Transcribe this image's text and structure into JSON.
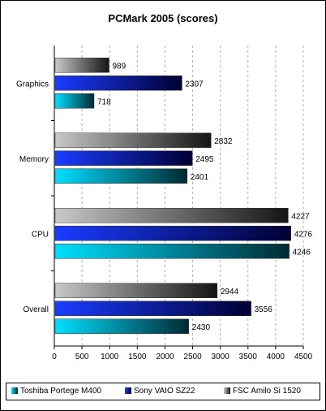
{
  "chart_data": {
    "type": "bar",
    "orientation": "horizontal",
    "title": "PCMark 2005 (scores)",
    "categories": [
      "Graphics",
      "Memory",
      "CPU",
      "Overall"
    ],
    "series": [
      {
        "name": "FSC Amilo Si 1520",
        "values": [
          989,
          2832,
          4227,
          2944
        ],
        "color_light": "#c8c8c8",
        "color_dark": "#141414"
      },
      {
        "name": "Sony VAIO SZ22",
        "values": [
          2307,
          2495,
          4276,
          3556
        ],
        "color_light": "#1a3cff",
        "color_dark": "#000033"
      },
      {
        "name": "Toshiba Portege M400",
        "values": [
          718,
          2401,
          4246,
          2430
        ],
        "color_light": "#00e0ff",
        "color_dark": "#002a33"
      }
    ],
    "xlim": [
      0,
      4500
    ],
    "xticks": [
      0,
      500,
      1000,
      1500,
      2000,
      2500,
      3000,
      3500,
      4000,
      4500
    ],
    "grid": true,
    "legend_order": [
      "Toshiba Portege M400",
      "Sony VAIO SZ22",
      "FSC Amilo Si 1520"
    ],
    "legend_position": "bottom"
  }
}
